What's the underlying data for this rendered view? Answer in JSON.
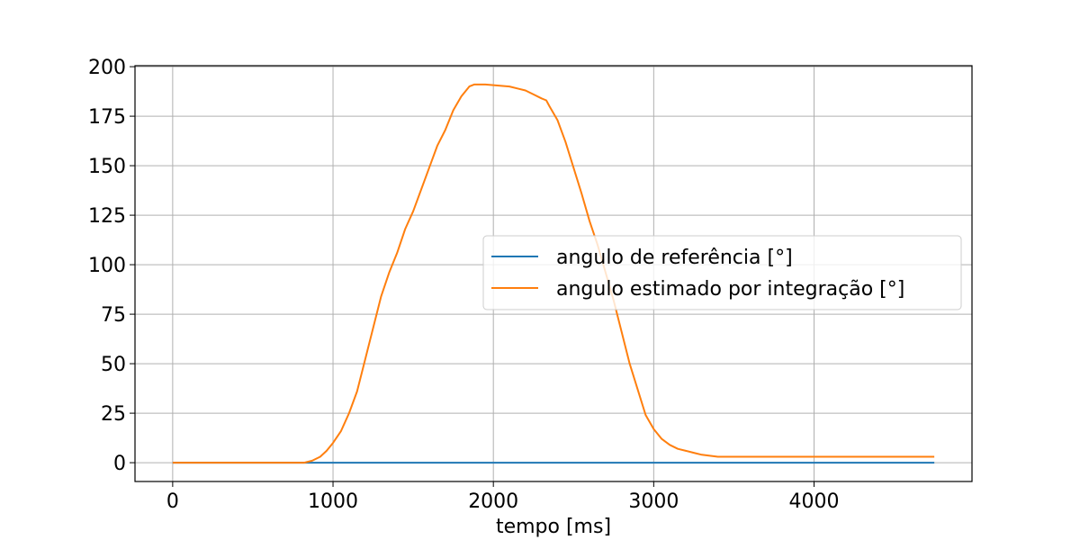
{
  "chart_data": {
    "type": "line",
    "title": "",
    "xlabel": "tempo [ms]",
    "ylabel": "",
    "xlim": [
      -235,
      4985
    ],
    "ylim": [
      -9.5,
      200.5
    ],
    "xticks": [
      0,
      1000,
      2000,
      3000,
      4000
    ],
    "yticks": [
      0,
      25,
      50,
      75,
      100,
      125,
      150,
      175,
      200
    ],
    "grid": true,
    "legend": "center-right",
    "series": [
      {
        "name": "angulo de referência [°]",
        "color": "#1f77b4",
        "x": [
          0,
          4750
        ],
        "y": [
          0,
          0
        ]
      },
      {
        "name": "angulo estimado por integração [°]",
        "color": "#ff7f0e",
        "x": [
          0,
          820,
          870,
          920,
          960,
          1000,
          1050,
          1100,
          1150,
          1200,
          1250,
          1300,
          1350,
          1400,
          1450,
          1500,
          1550,
          1600,
          1650,
          1700,
          1750,
          1800,
          1850,
          1880,
          1950,
          2100,
          2150,
          2200,
          2250,
          2300,
          2330,
          2350,
          2400,
          2450,
          2500,
          2550,
          2600,
          2650,
          2700,
          2750,
          2800,
          2850,
          2900,
          2950,
          3000,
          3050,
          3100,
          3150,
          3200,
          3250,
          3300,
          3350,
          3400,
          3500,
          4000,
          4500,
          4750
        ],
        "y": [
          0,
          0,
          1,
          3,
          6,
          10,
          16,
          25,
          36,
          52,
          68,
          84,
          96,
          106,
          118,
          127,
          138,
          149,
          160,
          168,
          178,
          185,
          190,
          191,
          191,
          190,
          189,
          188,
          186,
          184,
          183,
          180,
          173,
          162,
          149,
          136,
          122,
          110,
          96,
          82,
          66,
          50,
          37,
          24,
          17,
          12,
          9,
          7,
          6,
          5,
          4,
          3.5,
          3,
          3,
          3,
          3,
          3
        ]
      }
    ]
  }
}
